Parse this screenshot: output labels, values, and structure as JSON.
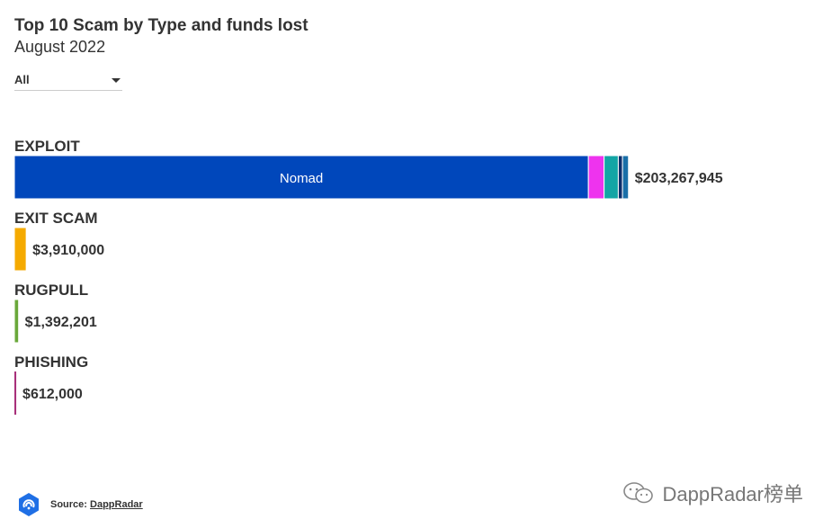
{
  "header": {
    "title": "Top 10 Scam by Type and funds lost",
    "subtitle": "August 2022"
  },
  "filter": {
    "selected": "All"
  },
  "chart_data": {
    "type": "bar",
    "orientation": "horizontal",
    "stacked": true,
    "title": "Top 10 Scam by Type and funds lost",
    "subtitle": "August 2022",
    "categories": [
      {
        "name": "EXPLOIT",
        "total": 203267945,
        "total_label": "$203,267,945",
        "segments": [
          {
            "name": "Nomad",
            "value": 190000000,
            "color": "#0047bb",
            "show_label": true
          },
          {
            "name": "",
            "value": 5200000,
            "color": "#ee33ee",
            "show_label": false
          },
          {
            "name": "",
            "value": 4700000,
            "color": "#13a5a5",
            "show_label": false
          },
          {
            "name": "",
            "value": 1400000,
            "color": "#0d2e6b",
            "show_label": false
          },
          {
            "name": "",
            "value": 1967945,
            "color": "#1a6fa8",
            "show_label": false
          }
        ]
      },
      {
        "name": "EXIT SCAM",
        "total": 3910000,
        "total_label": "$3,910,000",
        "segments": [
          {
            "name": "",
            "value": 3910000,
            "color": "#f5aa00",
            "show_label": false
          }
        ]
      },
      {
        "name": "RUGPULL",
        "total": 1392201,
        "total_label": "$1,392,201",
        "segments": [
          {
            "name": "",
            "value": 1392201,
            "color": "#6aa83a",
            "show_label": false
          }
        ]
      },
      {
        "name": "PHISHING",
        "total": 612000,
        "total_label": "$612,000",
        "segments": [
          {
            "name": "",
            "value": 612000,
            "color": "#a8307a",
            "show_label": false
          }
        ]
      }
    ],
    "xlim": [
      0,
      262000000
    ],
    "grid": false,
    "legend": "none"
  },
  "footer": {
    "source_prefix": "Source:",
    "source_name": "DappRadar",
    "logo_icon": "dappradar-logo-icon",
    "logo_color": "#1f6fe5"
  },
  "watermark": {
    "text": "DappRadar榜单",
    "icon": "wechat-icon"
  }
}
